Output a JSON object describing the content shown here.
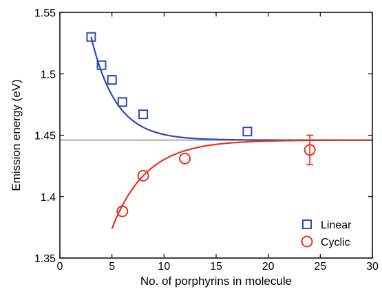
{
  "chart_data": {
    "type": "scatter",
    "xlabel": "No. of porphyrins in molecule",
    "ylabel": "Emission energy (eV)",
    "xlim": [
      0,
      30
    ],
    "ylim": [
      1.35,
      1.55
    ],
    "x_ticks": [
      0,
      5,
      10,
      15,
      20,
      25,
      30
    ],
    "y_ticks": [
      1.35,
      1.4,
      1.45,
      1.5,
      1.55
    ],
    "x_tick_labels": [
      "0",
      "5",
      "10",
      "15",
      "20",
      "25",
      "30"
    ],
    "y_tick_labels": [
      "1.35",
      "1.4",
      "1.45",
      "1.5",
      "1.55"
    ],
    "asymptote": 1.446,
    "legend_position": "bottom-right",
    "grid": false,
    "series": [
      {
        "name": "Linear",
        "color": "#2f47b5",
        "marker": "square",
        "x": [
          3,
          4,
          5,
          6,
          8,
          18
        ],
        "y": [
          1.53,
          1.507,
          1.495,
          1.477,
          1.467,
          1.453
        ],
        "fit": {
          "x_start": 3,
          "x_end": 30,
          "amplitude": 0.084,
          "decay": 2.4
        }
      },
      {
        "name": "Cyclic",
        "color": "#e8321e",
        "marker": "circle",
        "x": [
          6,
          8,
          12,
          24
        ],
        "y": [
          1.388,
          1.417,
          1.431,
          1.438
        ],
        "yerr": [
          0,
          0,
          0,
          0.012
        ],
        "fit": {
          "x_start": 5,
          "x_end": 30,
          "amplitude": -0.072,
          "decay": 3.3
        }
      }
    ],
    "reference_line_color": "#aaaaaa"
  }
}
